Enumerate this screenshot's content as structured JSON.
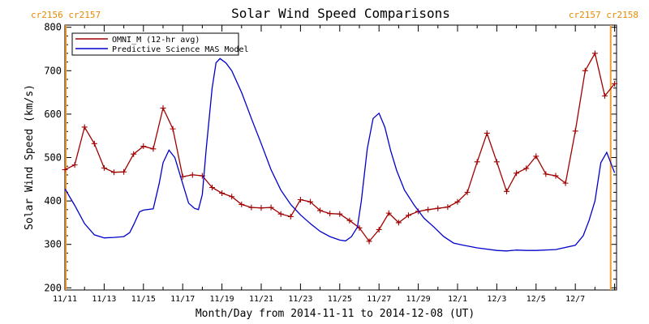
{
  "chart_data": {
    "type": "line",
    "title": "Solar Wind Speed Comparisons",
    "xlabel": "Month/Day from 2014-11-11 to 2014-12-08 (UT)",
    "ylabel": "Solar Wind Speed (km/s)",
    "ylim": [
      195,
      805
    ],
    "xlim_days": [
      0,
      28.1
    ],
    "y_ticks": [
      200,
      300,
      400,
      500,
      600,
      700,
      800
    ],
    "x_tick_labels": [
      "11/11",
      "11/13",
      "11/15",
      "11/17",
      "11/19",
      "11/21",
      "11/23",
      "11/25",
      "11/27",
      "11/29",
      "12/1",
      "12/3",
      "12/5",
      "12/7"
    ],
    "x_tick_days": [
      0,
      2,
      4,
      6,
      8,
      10,
      12,
      14,
      16,
      18,
      20,
      22,
      24,
      26
    ],
    "legend_position": "top-left",
    "carrington_labels": [
      {
        "text": "cr2156 cr2157",
        "side": "left",
        "day": 0.05
      },
      {
        "text": "cr2157 cr2158",
        "side": "right",
        "day": 27.8
      }
    ],
    "series": [
      {
        "name": "OMNI_M (12-hr avg)",
        "color": "#a00000",
        "markers": true,
        "x": [
          0.0,
          0.5,
          1.0,
          1.5,
          2.0,
          2.5,
          3.0,
          3.5,
          4.0,
          4.5,
          5.0,
          5.5,
          6.0,
          6.5,
          7.0,
          7.5,
          8.0,
          8.5,
          9.0,
          9.5,
          10.0,
          10.5,
          11.0,
          11.5,
          12.0,
          12.5,
          13.0,
          13.5,
          14.0,
          14.5,
          15.0,
          15.5,
          16.0,
          16.5,
          17.0,
          17.5,
          18.0,
          18.5,
          19.0,
          19.5,
          20.0,
          20.5,
          21.0,
          21.5,
          22.0,
          22.5,
          23.0,
          23.5,
          24.0,
          24.5,
          25.0,
          25.5,
          26.0,
          26.5,
          27.0,
          27.5,
          28.0
        ],
        "y": [
          472,
          483,
          570,
          532,
          476,
          466,
          467,
          508,
          526,
          520,
          614,
          566,
          456,
          460,
          458,
          431,
          418,
          410,
          392,
          385,
          384,
          385,
          370,
          364,
          403,
          398,
          378,
          371,
          370,
          355,
          338,
          307,
          334,
          372,
          350,
          367,
          376,
          380,
          383,
          386,
          398,
          420,
          490,
          556,
          490,
          422,
          464,
          475,
          503,
          462,
          458,
          441,
          561,
          700,
          740,
          642,
          670
        ]
      },
      {
        "name": "Predictive Science MAS Model",
        "color": "#0000cc",
        "markers": false,
        "x": [
          0.0,
          0.5,
          1.0,
          1.5,
          2.0,
          2.5,
          3.0,
          3.3,
          3.5,
          3.8,
          4.0,
          4.5,
          4.8,
          5.0,
          5.3,
          5.6,
          6.0,
          6.3,
          6.6,
          6.8,
          7.0,
          7.2,
          7.5,
          7.7,
          7.9,
          8.2,
          8.5,
          9.0,
          9.5,
          10.0,
          10.5,
          11.0,
          11.5,
          12.0,
          12.5,
          13.0,
          13.5,
          14.0,
          14.3,
          14.6,
          14.9,
          15.1,
          15.4,
          15.7,
          16.0,
          16.3,
          16.6,
          16.9,
          17.3,
          17.8,
          18.3,
          18.8,
          19.3,
          19.8,
          20.3,
          21.0,
          22.0,
          22.5,
          23.0,
          23.5,
          24.0,
          25.0,
          26.0,
          26.4,
          26.7,
          27.0,
          27.3,
          27.6,
          28.0
        ],
        "y": [
          428,
          390,
          348,
          322,
          315,
          316,
          318,
          327,
          345,
          375,
          379,
          382,
          440,
          488,
          517,
          500,
          440,
          395,
          383,
          380,
          415,
          520,
          660,
          718,
          728,
          718,
          700,
          650,
          590,
          532,
          472,
          425,
          392,
          368,
          348,
          330,
          318,
          310,
          308,
          318,
          340,
          400,
          520,
          590,
          602,
          570,
          515,
          470,
          425,
          390,
          360,
          340,
          318,
          303,
          298,
          292,
          286,
          285,
          287,
          286,
          286,
          288,
          298,
          320,
          355,
          400,
          488,
          512,
          465
        ]
      }
    ]
  }
}
